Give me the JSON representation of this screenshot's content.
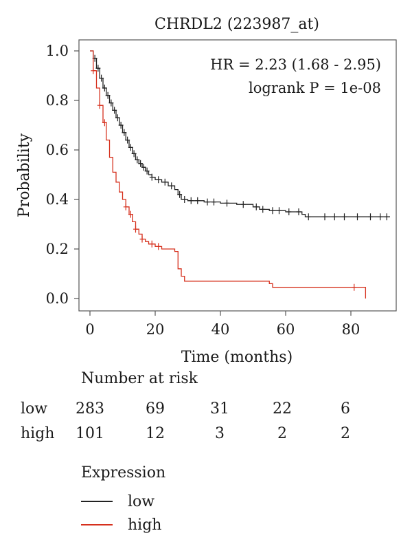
{
  "chart_data": {
    "type": "line",
    "title": "CHRDL2 (223987_at)",
    "xlabel": "Time (months)",
    "ylabel": "Probability",
    "xlim": [
      0,
      95
    ],
    "ylim": [
      0,
      1.0
    ],
    "xticks": [
      0,
      20,
      40,
      60,
      80
    ],
    "yticks": [
      "0.0",
      "0.2",
      "0.4",
      "0.6",
      "0.8",
      "1.0"
    ],
    "annotations": [
      "HR = 2.23 (1.68 - 2.95)",
      "logrank P = 1e-08"
    ],
    "series": [
      {
        "name": "low",
        "color": "#222222",
        "step_points": [
          [
            0,
            1.0
          ],
          [
            1,
            0.97
          ],
          [
            2,
            0.93
          ],
          [
            3,
            0.89
          ],
          [
            4,
            0.85
          ],
          [
            5,
            0.82
          ],
          [
            6,
            0.79
          ],
          [
            7,
            0.76
          ],
          [
            8,
            0.73
          ],
          [
            9,
            0.7
          ],
          [
            10,
            0.67
          ],
          [
            11,
            0.64
          ],
          [
            12,
            0.61
          ],
          [
            13,
            0.585
          ],
          [
            14,
            0.56
          ],
          [
            15,
            0.545
          ],
          [
            16,
            0.53
          ],
          [
            17,
            0.515
          ],
          [
            18,
            0.5
          ],
          [
            19,
            0.49
          ],
          [
            20,
            0.48
          ],
          [
            22,
            0.47
          ],
          [
            24,
            0.455
          ],
          [
            26,
            0.44
          ],
          [
            27,
            0.42
          ],
          [
            28,
            0.4
          ],
          [
            30,
            0.395
          ],
          [
            35,
            0.39
          ],
          [
            40,
            0.385
          ],
          [
            45,
            0.38
          ],
          [
            50,
            0.37
          ],
          [
            52,
            0.36
          ],
          [
            55,
            0.355
          ],
          [
            60,
            0.35
          ],
          [
            65,
            0.34
          ],
          [
            66,
            0.33
          ],
          [
            92,
            0.33
          ]
        ],
        "censor_times": [
          1.5,
          2.5,
          3.5,
          4.5,
          5.5,
          6.5,
          7.5,
          8.5,
          9.5,
          10.5,
          11.5,
          12.5,
          13.5,
          14.5,
          15.5,
          16.5,
          17.5,
          19,
          21,
          23,
          25,
          27.5,
          29,
          31,
          33,
          36,
          38,
          42,
          47,
          51,
          53,
          56,
          58,
          61,
          64,
          67,
          72,
          75,
          78,
          82,
          86,
          89,
          91
        ],
        "at_risk": [
          283,
          69,
          31,
          22,
          6
        ]
      },
      {
        "name": "high",
        "color": "#d6301d",
        "step_points": [
          [
            0,
            1.0
          ],
          [
            1,
            0.92
          ],
          [
            2,
            0.85
          ],
          [
            3,
            0.78
          ],
          [
            4,
            0.71
          ],
          [
            5,
            0.64
          ],
          [
            6,
            0.57
          ],
          [
            7,
            0.51
          ],
          [
            8,
            0.47
          ],
          [
            9,
            0.43
          ],
          [
            10,
            0.4
          ],
          [
            11,
            0.37
          ],
          [
            12,
            0.34
          ],
          [
            13,
            0.31
          ],
          [
            14,
            0.28
          ],
          [
            15,
            0.26
          ],
          [
            16,
            0.24
          ],
          [
            17,
            0.23
          ],
          [
            18,
            0.22
          ],
          [
            20,
            0.21
          ],
          [
            22,
            0.2
          ],
          [
            26,
            0.19
          ],
          [
            27,
            0.12
          ],
          [
            28,
            0.09
          ],
          [
            29,
            0.07
          ],
          [
            55,
            0.06
          ],
          [
            56,
            0.045
          ],
          [
            84,
            0.045
          ],
          [
            84.5,
            0.0
          ]
        ],
        "censor_times": [
          1,
          3,
          4.5,
          11,
          12.5,
          14,
          16,
          19,
          21,
          81
        ],
        "at_risk": [
          101,
          12,
          3,
          2,
          2
        ]
      }
    ],
    "risk_times": [
      0,
      20,
      40,
      60,
      80
    ]
  },
  "risk_table": {
    "title": "Number at risk",
    "rows": [
      {
        "label": "low",
        "values": [
          "283",
          "69",
          "31",
          "22",
          "6"
        ]
      },
      {
        "label": "high",
        "values": [
          "101",
          "12",
          "3",
          "2",
          "2"
        ]
      }
    ]
  },
  "legend": {
    "title": "Expression",
    "items": [
      {
        "label": "low",
        "color": "#222222"
      },
      {
        "label": "high",
        "color": "#d6301d"
      }
    ]
  }
}
